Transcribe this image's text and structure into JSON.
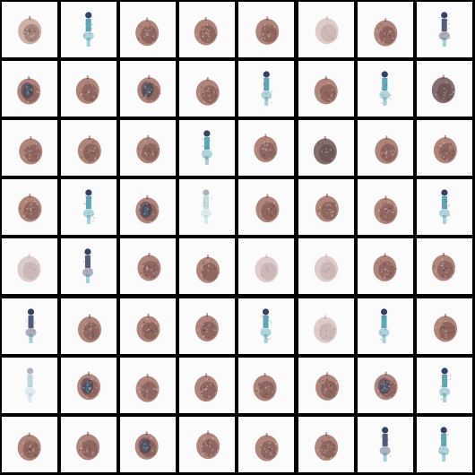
{
  "image": {
    "kind": "generated-sample-grid",
    "rows": 8,
    "columns": 8,
    "tile_background": "#fbfbfc",
    "separator_color": "#000000",
    "palette": {
      "apple_brown": "#8a4a3c",
      "apple_dark": "#4a2a2a",
      "apple_pale": "#b98b7c",
      "cyan_figure": "#2c8fa0",
      "navy_figure": "#1e2d52"
    },
    "samples": [
      "apple-pale",
      "figure-cyan",
      "apple",
      "apple",
      "apple",
      "apple-faint",
      "apple",
      "figure-navy",
      "apple-blue",
      "apple",
      "apple-blue",
      "apple",
      "figure-cyan",
      "apple",
      "figure-cyan",
      "apple-dark",
      "apple",
      "apple",
      "apple",
      "figure-cyan",
      "apple",
      "apple-dark",
      "apple",
      "apple",
      "apple",
      "figure-cyan",
      "apple-blue",
      "figure-faint",
      "apple",
      "apple",
      "apple",
      "figure-cyan",
      "apple-faint",
      "figure-navy",
      "apple",
      "apple",
      "apple-faint",
      "apple-faint",
      "apple",
      "apple",
      "figure-navy",
      "apple",
      "apple",
      "apple",
      "figure-cyan",
      "apple-faint",
      "figure-cyan",
      "apple",
      "figure-faint",
      "apple-blue",
      "apple",
      "apple",
      "apple",
      "apple",
      "apple-blue",
      "figure-cyan",
      "apple",
      "apple",
      "apple-blue",
      "apple",
      "apple",
      "apple",
      "figure-navy",
      "figure-cyan"
    ]
  }
}
